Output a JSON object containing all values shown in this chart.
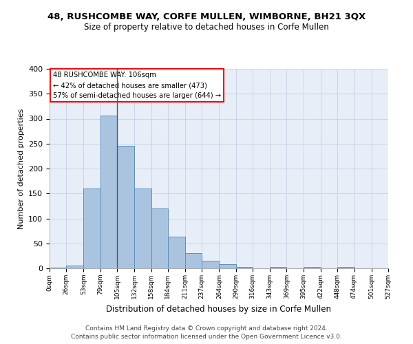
{
  "title": "48, RUSHCOMBE WAY, CORFE MULLEN, WIMBORNE, BH21 3QX",
  "subtitle": "Size of property relative to detached houses in Corfe Mullen",
  "xlabel": "Distribution of detached houses by size in Corfe Mullen",
  "ylabel": "Number of detached properties",
  "footer_line1": "Contains HM Land Registry data © Crown copyright and database right 2024.",
  "footer_line2": "Contains public sector information licensed under the Open Government Licence v3.0.",
  "bin_edges": [
    0,
    26,
    53,
    79,
    105,
    132,
    158,
    184,
    211,
    237,
    264,
    290,
    316,
    343,
    369,
    395,
    422,
    448,
    474,
    501,
    527
  ],
  "bar_heights": [
    2,
    5,
    160,
    306,
    246,
    160,
    120,
    64,
    30,
    15,
    8,
    3,
    0,
    3,
    0,
    3,
    0,
    3,
    0,
    0
  ],
  "bar_color": "#aac4e0",
  "bar_edge_color": "#5a8fbf",
  "grid_color": "#c8d4e8",
  "bg_color": "#e8eef8",
  "annotation_text_line1": "48 RUSHCOMBE WAY: 106sqm",
  "annotation_text_line2": "← 42% of detached houses are smaller (473)",
  "annotation_text_line3": "57% of semi-detached houses are larger (644) →",
  "vline_x": 105,
  "ylim": [
    0,
    400
  ],
  "yticks": [
    0,
    50,
    100,
    150,
    200,
    250,
    300,
    350,
    400
  ]
}
